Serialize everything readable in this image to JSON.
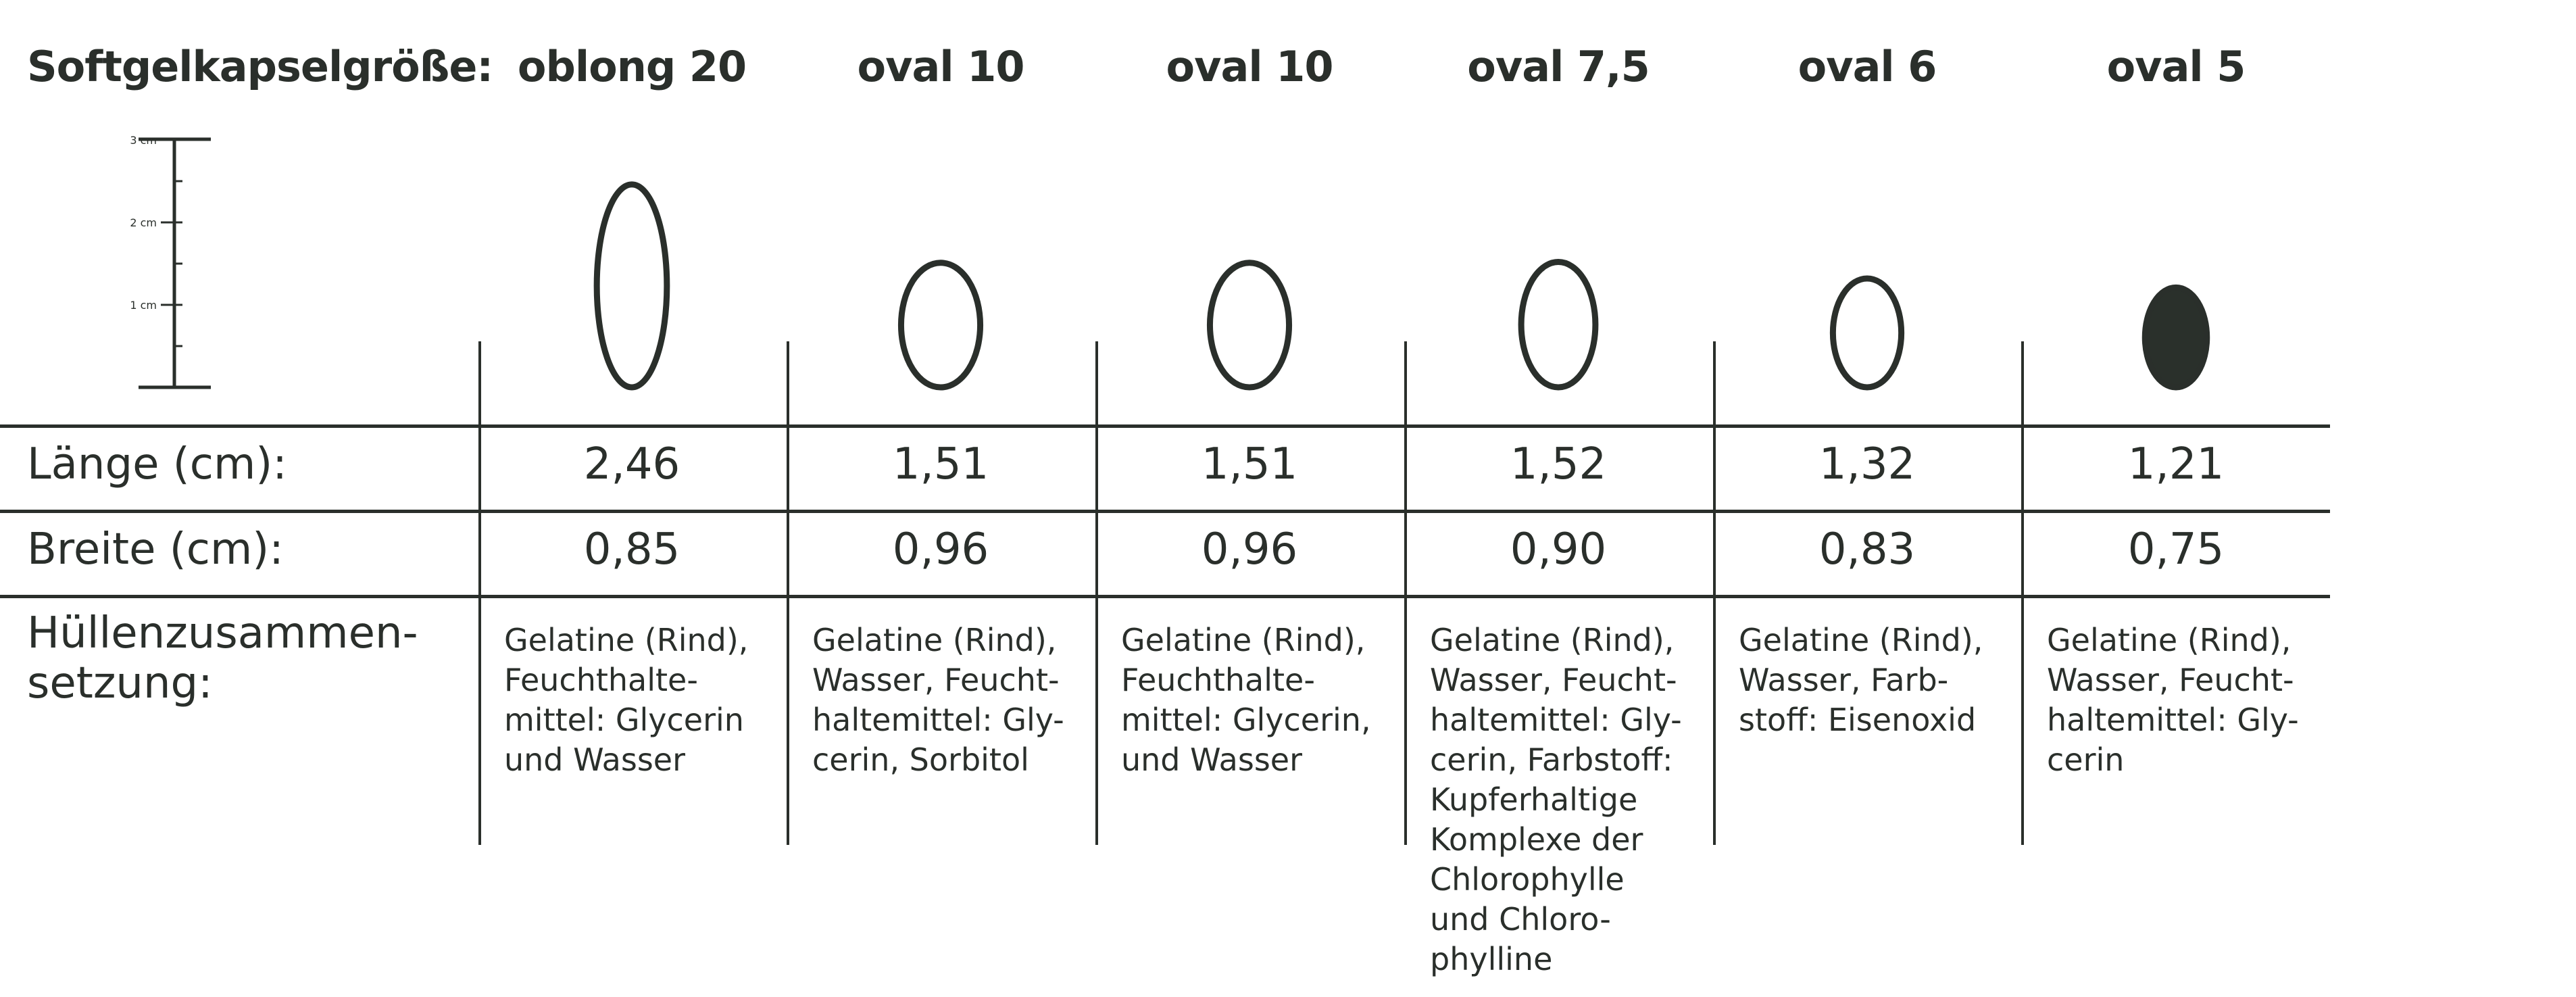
{
  "header_label": "Softgelkapselgröße:",
  "scale": {
    "labels": [
      "3 cm",
      "2 cm",
      "1 cm"
    ]
  },
  "row_labels": {
    "length": "Länge (cm):",
    "width": "Breite (cm):",
    "composition": [
      "Hüllenzusammen-",
      "setzung:"
    ]
  },
  "capsules": [
    {
      "name": "oblong 20",
      "length": "2,46",
      "width": "0,85",
      "composition": [
        "Gelatine (Rind),",
        "Feuchthalte-",
        "mittel: Glycerin",
        "und Wasser"
      ],
      "length_cm": 2.46,
      "width_cm": 0.85,
      "filled": false
    },
    {
      "name": "oval 10",
      "length": "1,51",
      "width": "0,96",
      "composition": [
        "Gelatine (Rind),",
        "Wasser, Feucht-",
        "haltemittel: Gly-",
        "cerin, Sorbitol"
      ],
      "length_cm": 1.51,
      "width_cm": 0.96,
      "filled": false
    },
    {
      "name": "oval 10",
      "length": "1,51",
      "width": "0,96",
      "composition": [
        "Gelatine (Rind),",
        "Feuchthalte-",
        "mittel: Glycerin,",
        "und Wasser"
      ],
      "length_cm": 1.51,
      "width_cm": 0.96,
      "filled": false
    },
    {
      "name": "oval 7,5",
      "length": "1,52",
      "width": "0,90",
      "composition": [
        "Gelatine (Rind),",
        "Wasser, Feucht-",
        "haltemittel: Gly-",
        "cerin, Farbstoff:",
        "Kupferhaltige",
        "Komplexe der",
        "Chlorophylle",
        "und Chloro-",
        "phylline"
      ],
      "length_cm": 1.52,
      "width_cm": 0.9,
      "filled": false
    },
    {
      "name": "oval 6",
      "length": "1,32",
      "width": "0,83",
      "composition": [
        "Gelatine (Rind),",
        "Wasser, Farb-",
        "stoff: Eisenoxid"
      ],
      "length_cm": 1.32,
      "width_cm": 0.83,
      "filled": false
    },
    {
      "name": "oval 5",
      "length": "1,21",
      "width": "0,75",
      "composition": [
        "Gelatine (Rind),",
        "Wasser, Feucht-",
        "haltemittel: Gly-",
        "cerin"
      ],
      "length_cm": 1.21,
      "width_cm": 0.75,
      "filled": true
    }
  ],
  "colors": {
    "ink": "#2a2f2b",
    "fill_dark": "#2a302b",
    "background": "#ffffff"
  }
}
